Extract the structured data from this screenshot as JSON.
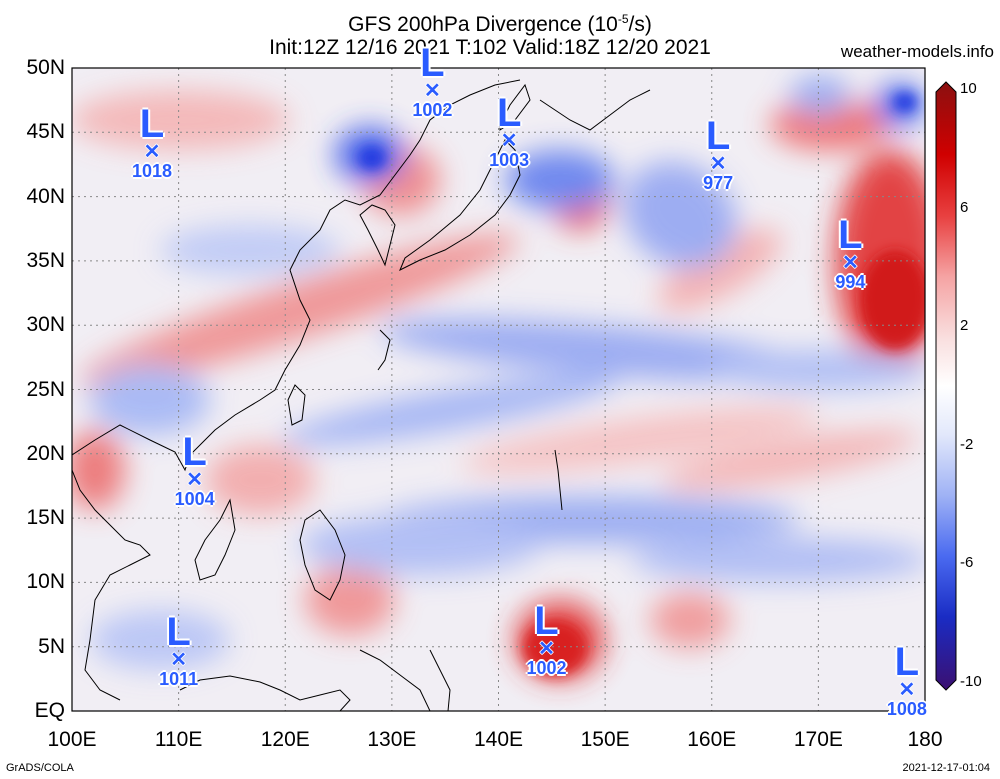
{
  "header": {
    "title_line1": "GFS 200hPa Divergence (10",
    "title_sup": "-5",
    "title_line1_end": "/s)",
    "title_line2": "Init:12Z 12/16 2021 T:102 Valid:18Z 12/20 2021",
    "site": "weather-models.info"
  },
  "axes": {
    "lat_labels": [
      "50N",
      "45N",
      "40N",
      "35N",
      "30N",
      "25N",
      "20N",
      "15N",
      "10N",
      "5N",
      "EQ"
    ],
    "lon_labels": [
      "100E",
      "110E",
      "120E",
      "130E",
      "140E",
      "150E",
      "160E",
      "170E",
      "180"
    ],
    "lat_range": [
      0,
      50
    ],
    "lon_range": [
      100,
      180
    ]
  },
  "colorbar": {
    "tick_labels": [
      "10",
      "6",
      "2",
      "-2",
      "-6",
      "-10"
    ],
    "range": [
      -10,
      10
    ],
    "colors": [
      "#3b0f70",
      "#1a2cc4",
      "#4a6af0",
      "#9fb2f5",
      "#e2e8fb",
      "#ffffff",
      "#f9dede",
      "#f5a3a3",
      "#e84040",
      "#d00000",
      "#8b1010"
    ]
  },
  "lows": [
    {
      "label": "L",
      "pressure": "1018",
      "lon": 107.5,
      "lat": 43.5
    },
    {
      "label": "L",
      "pressure": "1002",
      "lon": 133.8,
      "lat": 48.2
    },
    {
      "label": "L",
      "pressure": "1003",
      "lon": 141.0,
      "lat": 44.3
    },
    {
      "label": "L",
      "pressure": "977",
      "lon": 160.6,
      "lat": 42.5
    },
    {
      "label": "L",
      "pressure": "994",
      "lon": 173.0,
      "lat": 34.8
    },
    {
      "label": "L",
      "pressure": "1004",
      "lon": 111.5,
      "lat": 18.0
    },
    {
      "label": "L",
      "pressure": "1011",
      "lon": 110.0,
      "lat": 4.0
    },
    {
      "label": "L",
      "pressure": "1002",
      "lon": 144.5,
      "lat": 4.8
    },
    {
      "label": "L",
      "pressure": "1008",
      "lon": 178.3,
      "lat": 1.6
    }
  ],
  "footer": {
    "left": "GrADS/COLA",
    "right": "2021-12-17-01:04"
  }
}
